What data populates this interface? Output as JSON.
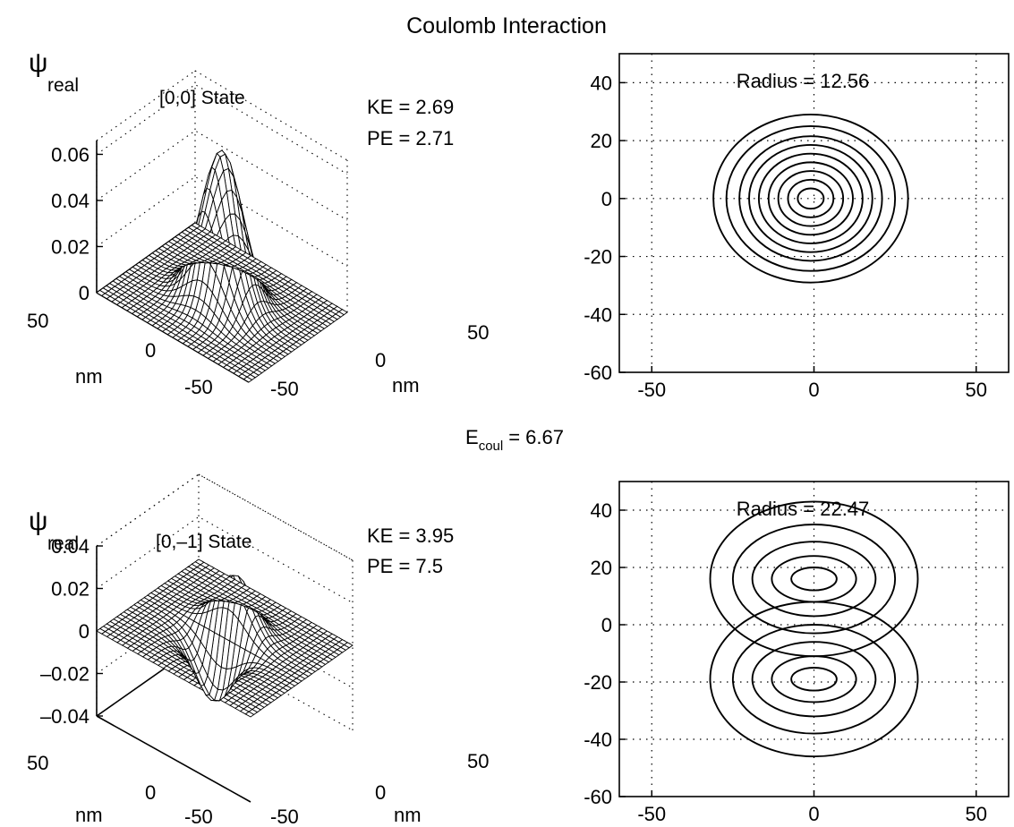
{
  "figure": {
    "title": "Coulomb Interaction",
    "energy": {
      "symbol": "E",
      "subscript": "coul",
      "value": "= 6.67"
    }
  },
  "chart_data": [
    {
      "type": "surface",
      "state_label": "[0,0] State",
      "zlabel": "ψ",
      "zlabel_sub": "real",
      "xlabel": "nm",
      "ylabel": "nm",
      "annotations": [
        "KE = 2.69",
        "PE = 2.71"
      ],
      "zticks": [
        0,
        0.02,
        0.04,
        0.06
      ],
      "ztick_labels": [
        "0",
        "0.02",
        "0.04",
        "0.06"
      ],
      "zlim": [
        0,
        0.066
      ],
      "xticks": [
        "-50",
        "0",
        "50"
      ],
      "yticks": [
        "50",
        "0",
        "-50"
      ],
      "xlim": [
        -60,
        60
      ],
      "ylim": [
        -60,
        60
      ],
      "function": "gaussian",
      "peak": 0.066,
      "center": [
        0,
        0
      ],
      "sigma": 14,
      "grid": true
    },
    {
      "type": "contour",
      "annotation": "Radius = 12.56",
      "xlim": [
        -60,
        60
      ],
      "ylim": [
        -60,
        50
      ],
      "xticks": [
        -50,
        0,
        50
      ],
      "xtick_labels": [
        "-50",
        "0",
        "50"
      ],
      "yticks": [
        -60,
        -40,
        -20,
        0,
        20,
        40
      ],
      "ytick_labels": [
        "-60",
        "-40",
        "-20",
        "0",
        "20",
        "40"
      ],
      "grid": true,
      "contours": [
        {
          "cx": -1,
          "cy": 0,
          "rx": 30,
          "ry": 29
        },
        {
          "cx": -1,
          "cy": 0,
          "rx": 26,
          "ry": 25
        },
        {
          "cx": -1,
          "cy": 0,
          "rx": 22,
          "ry": 21.5
        },
        {
          "cx": -1,
          "cy": 0,
          "rx": 19,
          "ry": 18.5
        },
        {
          "cx": -1,
          "cy": 0,
          "rx": 16,
          "ry": 15.5
        },
        {
          "cx": -1,
          "cy": 0,
          "rx": 13,
          "ry": 12.5
        },
        {
          "cx": -1,
          "cy": 0,
          "rx": 10,
          "ry": 9.5
        },
        {
          "cx": -1,
          "cy": 0,
          "rx": 7,
          "ry": 6.5
        },
        {
          "cx": -1,
          "cy": 0,
          "rx": 4,
          "ry": 3.5
        }
      ]
    },
    {
      "type": "surface",
      "state_label": "[0,–1] State",
      "zlabel": "ψ",
      "zlabel_sub": "real",
      "xlabel": "nm",
      "ylabel": "nm",
      "annotations": [
        "KE = 3.95",
        "PE = 7.5"
      ],
      "zticks": [
        -0.04,
        -0.02,
        0,
        0.02,
        0.04
      ],
      "ztick_labels": [
        "–0.04",
        "–0.02",
        "0",
        "0.02",
        "0.04"
      ],
      "zlim": [
        -0.04,
        0.04
      ],
      "xticks": [
        "-50",
        "0",
        "50"
      ],
      "yticks": [
        "50",
        "0",
        "-50"
      ],
      "xlim": [
        -60,
        60
      ],
      "ylim": [
        -60,
        60
      ],
      "function": "dipole",
      "peak": 0.026,
      "center": [
        0,
        0
      ],
      "sigma": 13,
      "grid": true
    },
    {
      "type": "contour",
      "annotation": "Radius = 22.47",
      "xlim": [
        -60,
        60
      ],
      "ylim": [
        -60,
        50
      ],
      "xticks": [
        -50,
        0,
        50
      ],
      "xtick_labels": [
        "-50",
        "0",
        "50"
      ],
      "yticks": [
        -60,
        -40,
        -20,
        0,
        20,
        40
      ],
      "ytick_labels": [
        "-60",
        "-40",
        "-20",
        "0",
        "20",
        "40"
      ],
      "grid": true,
      "contours": [
        {
          "lobe": "upper",
          "cx": 0,
          "cy": 16,
          "rx": 32,
          "ry": 27
        },
        {
          "lobe": "upper",
          "cx": 0,
          "cy": 16,
          "rx": 25,
          "ry": 19
        },
        {
          "lobe": "upper",
          "cx": 0,
          "cy": 16,
          "rx": 19,
          "ry": 13
        },
        {
          "lobe": "upper",
          "cx": 0,
          "cy": 16,
          "rx": 13,
          "ry": 8
        },
        {
          "lobe": "upper",
          "cx": 0,
          "cy": 16,
          "rx": 7,
          "ry": 4
        },
        {
          "lobe": "lower",
          "cx": 0,
          "cy": -19,
          "rx": 32,
          "ry": 27
        },
        {
          "lobe": "lower",
          "cx": 0,
          "cy": -19,
          "rx": 25,
          "ry": 19
        },
        {
          "lobe": "lower",
          "cx": 0,
          "cy": -19,
          "rx": 19,
          "ry": 13
        },
        {
          "lobe": "lower",
          "cx": 0,
          "cy": -19,
          "rx": 13,
          "ry": 8
        },
        {
          "lobe": "lower",
          "cx": 0,
          "cy": -19,
          "rx": 7,
          "ry": 4
        }
      ]
    }
  ]
}
